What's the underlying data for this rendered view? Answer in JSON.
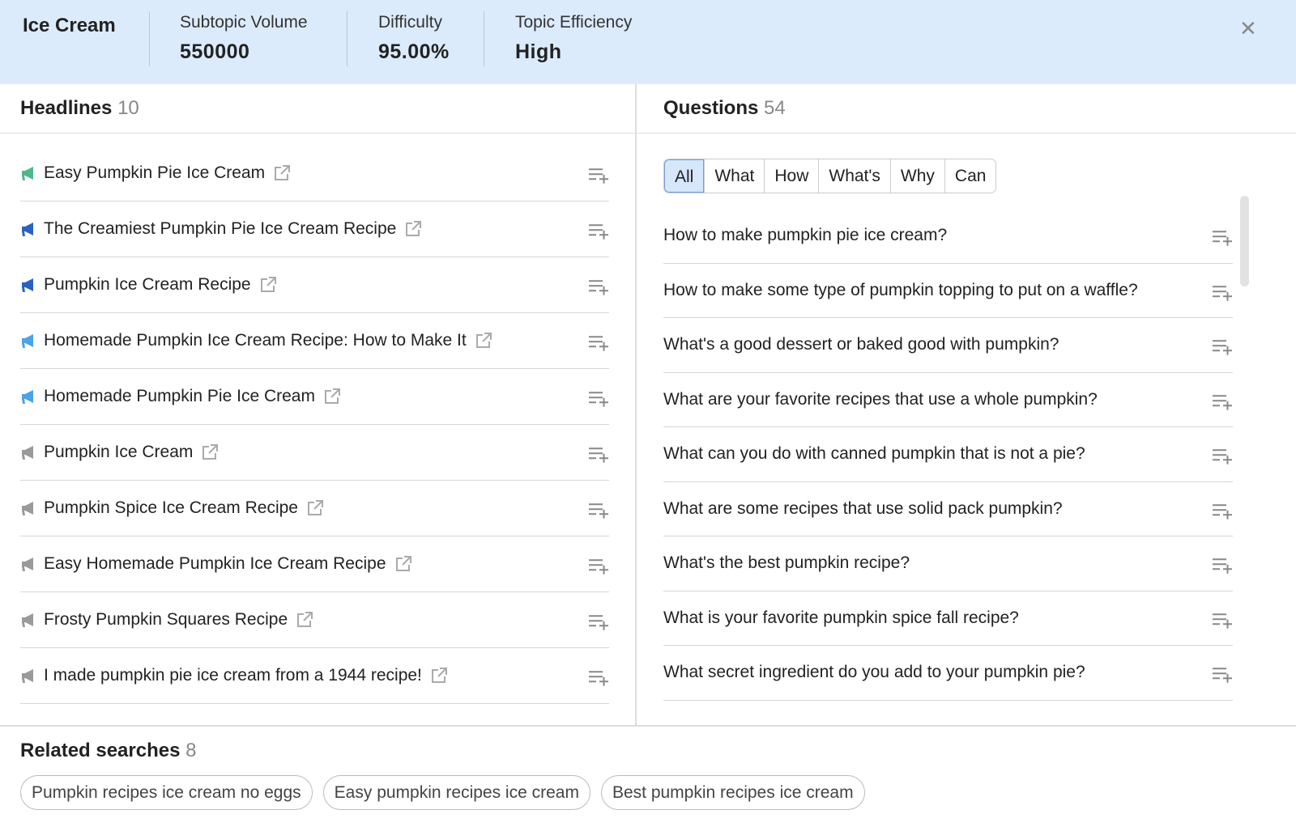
{
  "header": {
    "title": "Ice Cream",
    "metrics": [
      {
        "label": "Subtopic Volume",
        "value": "550000"
      },
      {
        "label": "Difficulty",
        "value": "95.00%"
      },
      {
        "label": "Topic Efficiency",
        "value": "High"
      }
    ],
    "close_icon": "close-icon"
  },
  "headlines": {
    "title": "Headlines",
    "count": "10",
    "items": [
      {
        "text": "Easy Pumpkin Pie Ice Cream",
        "icon_color": "#4fb88a"
      },
      {
        "text": "The Creamiest Pumpkin Pie Ice Cream Recipe",
        "icon_color": "#2a62c4"
      },
      {
        "text": "Pumpkin Ice Cream Recipe",
        "icon_color": "#2a62c4"
      },
      {
        "text": "Homemade Pumpkin Ice Cream Recipe: How to Make It",
        "icon_color": "#4aa3e6"
      },
      {
        "text": "Homemade Pumpkin Pie Ice Cream",
        "icon_color": "#4aa3e6"
      },
      {
        "text": "Pumpkin Ice Cream",
        "icon_color": "#9a9a9a"
      },
      {
        "text": "Pumpkin Spice Ice Cream Recipe",
        "icon_color": "#9a9a9a"
      },
      {
        "text": "Easy Homemade Pumpkin Ice Cream Recipe",
        "icon_color": "#9a9a9a"
      },
      {
        "text": "Frosty Pumpkin Squares Recipe",
        "icon_color": "#9a9a9a"
      },
      {
        "text": "I made pumpkin pie ice cream from a 1944 recipe!",
        "icon_color": "#9a9a9a"
      }
    ]
  },
  "questions": {
    "title": "Questions",
    "count": "54",
    "filters": [
      "All",
      "What",
      "How",
      "What's",
      "Why",
      "Can"
    ],
    "active_filter": "All",
    "items": [
      "How to make pumpkin pie ice cream?",
      "How to make some type of pumpkin topping to put on a waffle?",
      "What's a good dessert or baked good with pumpkin?",
      "What are your favorite recipes that use a whole pumpkin?",
      "What can you do with canned pumpkin that is not a pie?",
      "What are some recipes that use solid pack pumpkin?",
      "What's the best pumpkin recipe?",
      "What is your favorite pumpkin spice fall recipe?",
      "What secret ingredient do you add to your pumpkin pie?"
    ]
  },
  "related": {
    "title": "Related searches",
    "count": "8",
    "chips": [
      "Pumpkin recipes ice cream no eggs",
      "Easy pumpkin recipes ice cream",
      "Best pumpkin recipes ice cream"
    ]
  }
}
